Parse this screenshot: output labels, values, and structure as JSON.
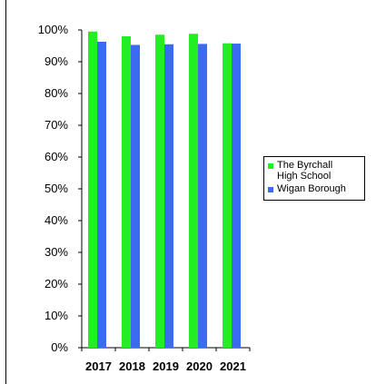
{
  "colors": {
    "school": "#22ee22",
    "borough": "#3b6bf0"
  },
  "legend": {
    "school_label_line1": "The Byrchall",
    "school_label_line2": "High School",
    "borough_label": "Wigan Borough"
  },
  "chart_data": {
    "type": "bar",
    "title": "",
    "xlabel": "",
    "ylabel": "",
    "categories": [
      "2017",
      "2018",
      "2019",
      "2020",
      "2021"
    ],
    "series": [
      {
        "name": "The Byrchall High School",
        "values": [
          99.5,
          98,
          98.5,
          98.8,
          95.8
        ]
      },
      {
        "name": "Wigan Borough",
        "values": [
          96.3,
          95.3,
          95.5,
          95.6,
          95.7
        ]
      }
    ],
    "ylim": [
      0,
      100
    ],
    "yticks": [
      "0%",
      "10%",
      "20%",
      "30%",
      "40%",
      "50%",
      "60%",
      "70%",
      "80%",
      "90%",
      "100%"
    ],
    "legend_position": "right",
    "grid": false
  }
}
